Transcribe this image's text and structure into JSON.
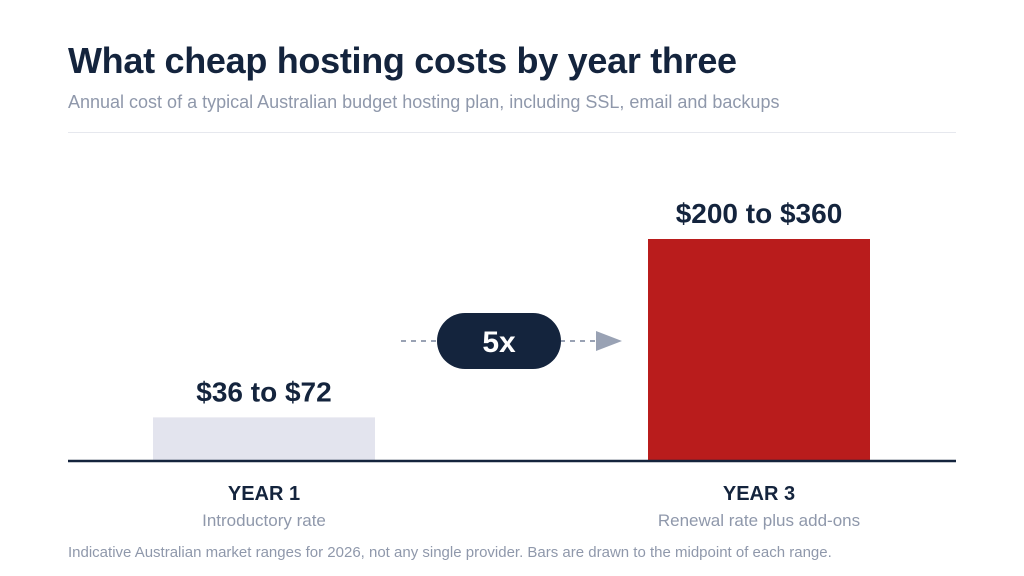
{
  "title": "What cheap hosting costs by year three",
  "subtitle": "Annual cost of a typical Australian budget hosting plan, including SSL, email and backups",
  "footnote": "Indicative Australian market ranges for 2026, not any single provider. Bars are drawn to the midpoint of each range.",
  "chart_data": {
    "type": "bar",
    "categories": [
      "YEAR 1",
      "YEAR 3"
    ],
    "category_sublabels": [
      "Introductory rate",
      "Renewal rate plus add-ons"
    ],
    "ranges": [
      [
        36,
        72
      ],
      [
        200,
        360
      ]
    ],
    "values": [
      54,
      280
    ],
    "data_labels": [
      "$36 to $72",
      "$200 to $360"
    ],
    "colors": [
      "#e3e4ee",
      "#b91c1c"
    ],
    "ylim": [
      0,
      280
    ],
    "grid": false,
    "annotation": {
      "text": "5x",
      "from": "YEAR 1",
      "to": "YEAR 3",
      "pill_color": "#14243d",
      "arrow_color": "#99a2b4"
    }
  }
}
